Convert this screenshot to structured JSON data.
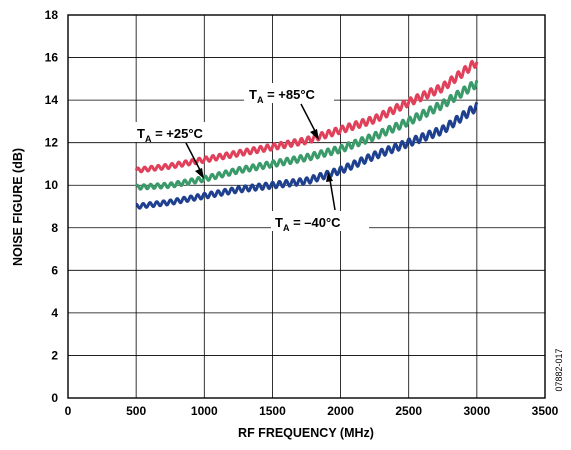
{
  "chart_data": {
    "type": "line",
    "xlabel": "RF FREQUENCY (MHz)",
    "ylabel": "NOISE FIGURE (dB)",
    "xlim": [
      0,
      3500
    ],
    "ylim": [
      0,
      18
    ],
    "xticks": [
      0,
      500,
      1000,
      1500,
      2000,
      2500,
      3000,
      3500
    ],
    "yticks": [
      0,
      2,
      4,
      6,
      8,
      10,
      12,
      14,
      16,
      18
    ],
    "grid": true,
    "figure_id": "07882-017",
    "series": [
      {
        "name": "TA = +85°C",
        "color": "#e0405a",
        "x": [
          500,
          750,
          1000,
          1250,
          1500,
          1750,
          2000,
          2250,
          2500,
          2750,
          3000
        ],
        "y": [
          10.7,
          10.9,
          11.2,
          11.5,
          11.8,
          12.1,
          12.6,
          13.1,
          13.9,
          14.6,
          15.8
        ]
      },
      {
        "name": "TA = +25°C",
        "color": "#3a9a6a",
        "x": [
          500,
          750,
          1000,
          1250,
          1500,
          1750,
          2000,
          2250,
          2500,
          2750,
          3000
        ],
        "y": [
          9.9,
          10.0,
          10.3,
          10.7,
          11.0,
          11.3,
          11.7,
          12.3,
          13.0,
          13.8,
          14.8
        ]
      },
      {
        "name": "TA = –40°C",
        "color": "#1f3f8f",
        "x": [
          500,
          750,
          1000,
          1250,
          1500,
          1750,
          2000,
          2250,
          2500,
          2750,
          3000
        ],
        "y": [
          9.0,
          9.2,
          9.5,
          9.8,
          10.0,
          10.2,
          10.7,
          11.4,
          12.0,
          12.6,
          13.7
        ]
      }
    ],
    "annotations": [
      {
        "prefix": "T",
        "sub": "A",
        "text": " = +85°C",
        "series": 0
      },
      {
        "prefix": "T",
        "sub": "A",
        "text": " = +25°C",
        "series": 1
      },
      {
        "prefix": "T",
        "sub": "A",
        "text": " = –40°C",
        "series": 2
      }
    ]
  }
}
